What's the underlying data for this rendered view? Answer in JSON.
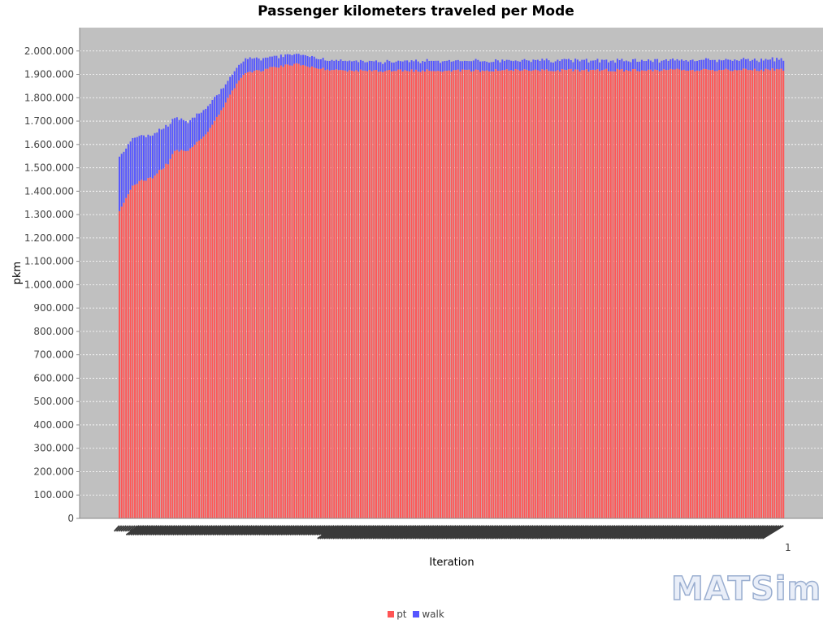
{
  "chart_data": {
    "type": "bar",
    "stacked": true,
    "title": "Passenger kilometers traveled per Mode",
    "xlabel": "Iteration",
    "ylabel": "pkm",
    "ylim": [
      0,
      2100000
    ],
    "y_ticks": [
      "0",
      "100.000",
      "200.000",
      "300.000",
      "400.000",
      "500.000",
      "600.000",
      "700.000",
      "800.000",
      "900.000",
      "1.000.000",
      "1.100.000",
      "1.200.000",
      "1.300.000",
      "1.400.000",
      "1.500.000",
      "1.600.000",
      "1.700.000",
      "1.800.000",
      "1.900.000",
      "2.000.000"
    ],
    "x_tick_last": "1",
    "grid": true,
    "legend_position": "bottom",
    "x_range": [
      0,
      300
    ],
    "keypoints": [
      {
        "x": 0,
        "pt": 1310000,
        "walk": 230000
      },
      {
        "x": 6,
        "pt": 1430000,
        "walk": 200000
      },
      {
        "x": 15,
        "pt": 1460000,
        "walk": 180000
      },
      {
        "x": 22,
        "pt": 1520000,
        "walk": 160000
      },
      {
        "x": 25,
        "pt": 1575000,
        "walk": 140000
      },
      {
        "x": 30,
        "pt": 1570000,
        "walk": 125000
      },
      {
        "x": 40,
        "pt": 1650000,
        "walk": 110000
      },
      {
        "x": 48,
        "pt": 1780000,
        "walk": 80000
      },
      {
        "x": 56,
        "pt": 1900000,
        "walk": 60000
      },
      {
        "x": 70,
        "pt": 1930000,
        "walk": 45000
      },
      {
        "x": 80,
        "pt": 1945000,
        "walk": 45000
      },
      {
        "x": 95,
        "pt": 1920000,
        "walk": 40000
      },
      {
        "x": 110,
        "pt": 1915000,
        "walk": 40000
      },
      {
        "x": 300,
        "pt": 1920000,
        "walk": 43000
      }
    ],
    "series": [
      {
        "name": "pt",
        "color": "#ff5555"
      },
      {
        "name": "walk",
        "color": "#5555ff"
      }
    ]
  },
  "logo_text": "MATSim"
}
